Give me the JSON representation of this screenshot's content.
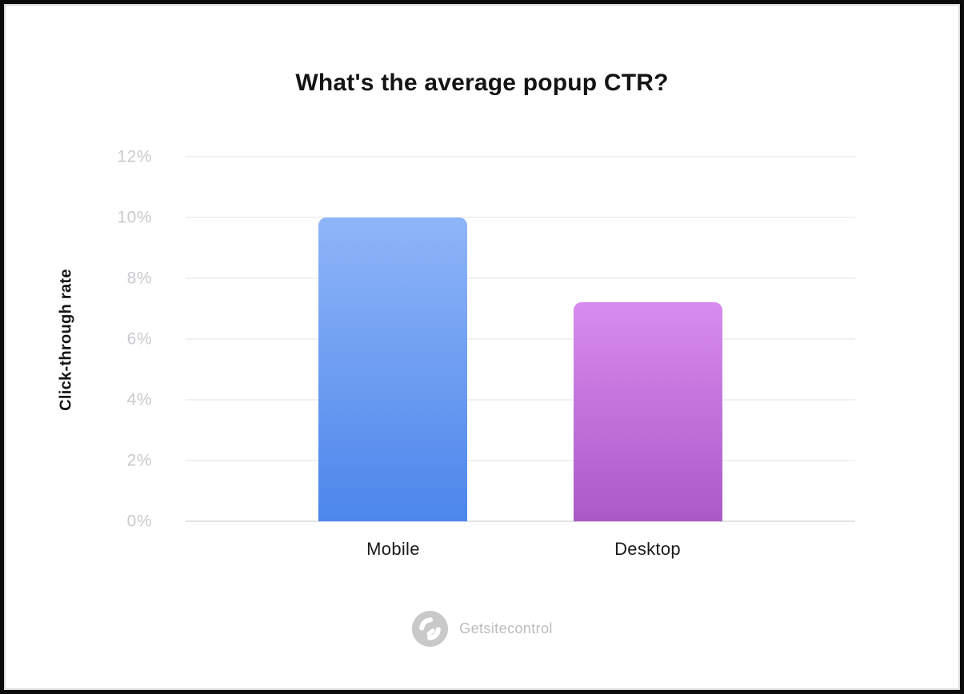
{
  "page": {
    "background_color": "#ffffff",
    "frame_color": "#0b0b0b"
  },
  "chart_data": {
    "type": "bar",
    "title": "What's the average popup CTR?",
    "categories": [
      "Mobile",
      "Desktop"
    ],
    "values": [
      10,
      7.2
    ],
    "value_unit": "%",
    "xlabel": "",
    "ylabel": "Click-through rate",
    "ylim": [
      0,
      12
    ],
    "ytick_step": 2,
    "ytick_labels": [
      "0%",
      "2%",
      "4%",
      "6%",
      "8%",
      "10%",
      "12%"
    ],
    "grid": true,
    "legend": false,
    "bar_colors": [
      {
        "top": "#8fb5f8",
        "bottom": "#4c86eb"
      },
      {
        "top": "#d88bef",
        "bottom": "#aa59c6"
      }
    ],
    "gridline_color": "#f1f1f3",
    "axis_line_color": "#e3e3e7",
    "tick_label_color": "#c9c9ce",
    "title_color": "#141414"
  },
  "footer": {
    "brand": "Getsitecontrol",
    "logo_icon": "getsitecontrol-circle-g-icon",
    "logo_color": "#c9c9c9",
    "text_color": "#bcbcc0"
  }
}
